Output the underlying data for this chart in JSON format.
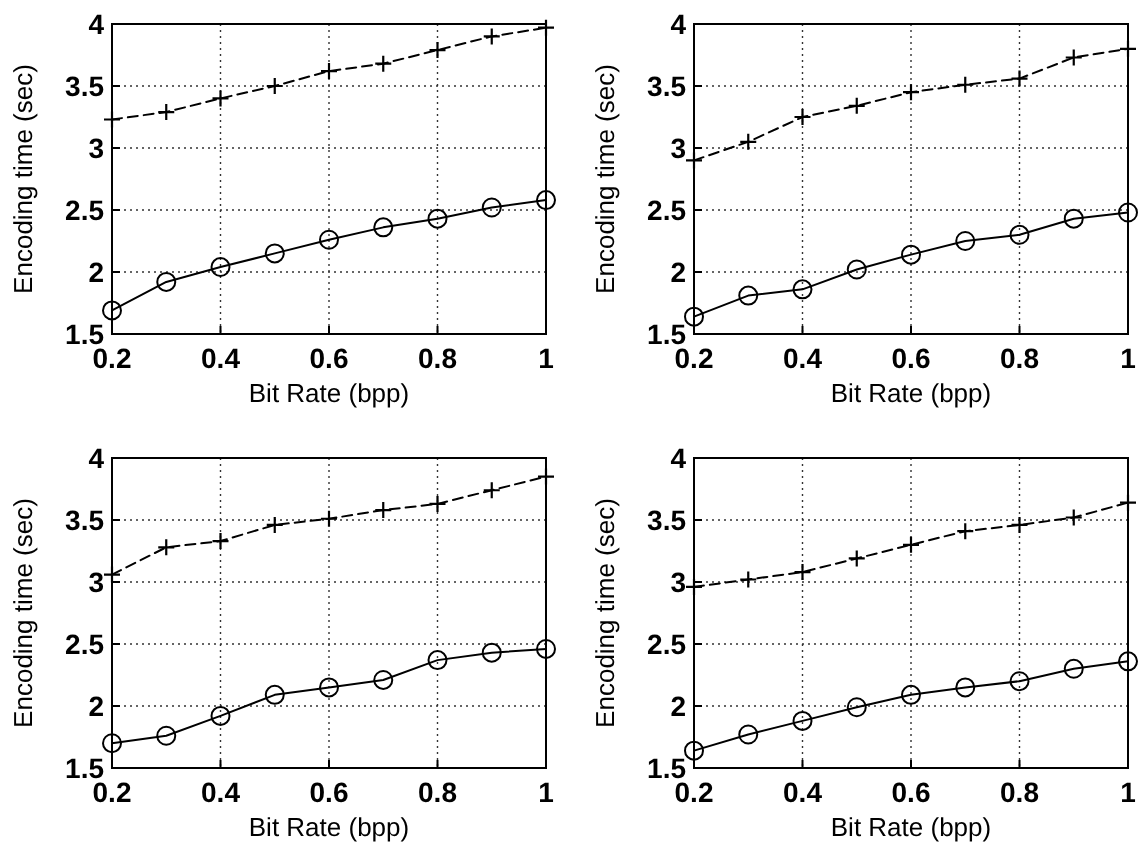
{
  "chart_data": [
    {
      "type": "line",
      "xlabel": "Bit Rate (bpp)",
      "ylabel": "Encoding time (sec)",
      "x": [
        0.2,
        0.3,
        0.4,
        0.5,
        0.6,
        0.7,
        0.8,
        0.9,
        1
      ],
      "xlim": [
        0.2,
        1
      ],
      "xticks": [
        0.2,
        0.4,
        0.6,
        0.8,
        1
      ],
      "ylim": [
        1.5,
        4
      ],
      "yticks": [
        1.5,
        2,
        2.5,
        3,
        3.5,
        4
      ],
      "grid": true,
      "series": [
        {
          "color": "#000000",
          "marker": "cross",
          "line_style": "dashed",
          "values": [
            3.23,
            3.29,
            3.4,
            3.5,
            3.62,
            3.68,
            3.79,
            3.9,
            3.97
          ]
        },
        {
          "color": "#000000",
          "marker": "circle",
          "line_style": "solid",
          "values": [
            1.69,
            1.92,
            2.04,
            2.15,
            2.26,
            2.36,
            2.43,
            2.52,
            2.58
          ]
        }
      ]
    },
    {
      "type": "line",
      "xlabel": "Bit Rate (bpp)",
      "ylabel": "Encoding time (sec)",
      "x": [
        0.2,
        0.3,
        0.4,
        0.5,
        0.6,
        0.7,
        0.8,
        0.9,
        1
      ],
      "xlim": [
        0.2,
        1
      ],
      "xticks": [
        0.2,
        0.4,
        0.6,
        0.8,
        1
      ],
      "ylim": [
        1.5,
        4
      ],
      "yticks": [
        1.5,
        2,
        2.5,
        3,
        3.5,
        4
      ],
      "grid": true,
      "series": [
        {
          "color": "#000000",
          "marker": "cross",
          "line_style": "dashed",
          "values": [
            2.9,
            3.05,
            3.25,
            3.34,
            3.45,
            3.51,
            3.56,
            3.73,
            3.8
          ]
        },
        {
          "color": "#000000",
          "marker": "circle",
          "line_style": "solid",
          "values": [
            1.64,
            1.81,
            1.86,
            2.02,
            2.14,
            2.25,
            2.3,
            2.43,
            2.48
          ]
        }
      ]
    },
    {
      "type": "line",
      "xlabel": "Bit Rate (bpp)",
      "ylabel": "Encoding time (sec)",
      "x": [
        0.2,
        0.3,
        0.4,
        0.5,
        0.6,
        0.7,
        0.8,
        0.9,
        1
      ],
      "xlim": [
        0.2,
        1
      ],
      "xticks": [
        0.2,
        0.4,
        0.6,
        0.8,
        1
      ],
      "ylim": [
        1.5,
        4
      ],
      "yticks": [
        1.5,
        2,
        2.5,
        3,
        3.5,
        4
      ],
      "grid": true,
      "series": [
        {
          "color": "#000000",
          "marker": "cross",
          "line_style": "dashed",
          "values": [
            3.06,
            3.28,
            3.33,
            3.46,
            3.51,
            3.58,
            3.63,
            3.74,
            3.85
          ]
        },
        {
          "color": "#000000",
          "marker": "circle",
          "line_style": "solid",
          "values": [
            1.7,
            1.76,
            1.92,
            2.09,
            2.15,
            2.21,
            2.37,
            2.43,
            2.46
          ]
        }
      ]
    },
    {
      "type": "line",
      "xlabel": "Bit Rate (bpp)",
      "ylabel": "Encoding time (sec)",
      "x": [
        0.2,
        0.3,
        0.4,
        0.5,
        0.6,
        0.7,
        0.8,
        0.9,
        1
      ],
      "xlim": [
        0.2,
        1
      ],
      "xticks": [
        0.2,
        0.4,
        0.6,
        0.8,
        1
      ],
      "ylim": [
        1.5,
        4
      ],
      "yticks": [
        1.5,
        2,
        2.5,
        3,
        3.5,
        4
      ],
      "grid": true,
      "series": [
        {
          "color": "#000000",
          "marker": "cross",
          "line_style": "dashed",
          "values": [
            2.96,
            3.02,
            3.08,
            3.19,
            3.3,
            3.41,
            3.46,
            3.52,
            3.64
          ]
        },
        {
          "color": "#000000",
          "marker": "circle",
          "line_style": "solid",
          "values": [
            1.64,
            1.77,
            1.88,
            1.99,
            2.09,
            2.15,
            2.2,
            2.3,
            2.36
          ]
        }
      ]
    }
  ]
}
